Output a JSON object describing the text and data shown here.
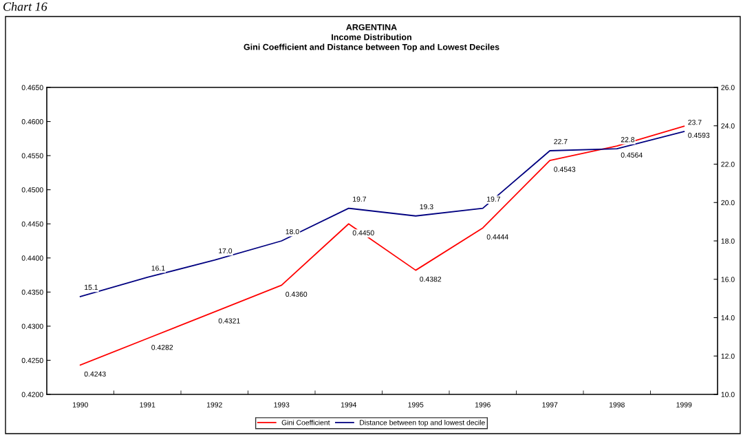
{
  "chart_data": {
    "type": "line",
    "title": "ARGENTINA\nIncome Distribution\nGini Coefficient and Distance between Top and Lowest Deciles",
    "annotations": [
      "Chart 16"
    ],
    "categories": [
      "1990",
      "1991",
      "1992",
      "1993",
      "1994",
      "1995",
      "1996",
      "1997",
      "1998",
      "1999"
    ],
    "series": [
      {
        "name": "Gini Coefficient",
        "color": "#ff0000",
        "values": [
          0.4243,
          0.4282,
          0.4321,
          0.436,
          0.445,
          0.4382,
          0.4444,
          0.4543,
          0.4564,
          0.4593
        ],
        "value_labels": [
          "0.4243",
          "0.4282",
          "0.4321",
          "0.4360",
          "0.4450",
          "0.4382",
          "0.4444",
          "0.4543",
          "0.4564",
          "0.4593"
        ]
      },
      {
        "name": "Distance between top and lowest decile",
        "color": "#000080",
        "axis": "y2",
        "values": [
          15.1,
          16.1,
          17.0,
          18.0,
          19.7,
          19.3,
          19.7,
          22.7,
          22.8,
          23.7
        ],
        "value_labels": [
          "15.1",
          "16.1",
          "17.0",
          "18.0",
          "19.7",
          "19.3",
          "19.7",
          "22.7",
          "22.8",
          "23.7"
        ]
      }
    ],
    "ylim": [
      0.42,
      0.465
    ],
    "yticks": [
      {
        "value": 0.42,
        "label": "0.4200"
      },
      {
        "value": 0.425,
        "label": "0.4250"
      },
      {
        "value": 0.43,
        "label": "0.4300"
      },
      {
        "value": 0.435,
        "label": "0.4350"
      },
      {
        "value": 0.44,
        "label": "0.4400"
      },
      {
        "value": 0.445,
        "label": "0.4450"
      },
      {
        "value": 0.45,
        "label": "0.4500"
      },
      {
        "value": 0.455,
        "label": "0.4550"
      },
      {
        "value": 0.46,
        "label": "0.4600"
      },
      {
        "value": 0.465,
        "label": "0.4650"
      }
    ],
    "y2lim": [
      10,
      26
    ],
    "y2ticks": [
      {
        "value": 10,
        "label": "10.0"
      },
      {
        "value": 12,
        "label": "12.0"
      },
      {
        "value": 14,
        "label": "14.0"
      },
      {
        "value": 16,
        "label": "16.0"
      },
      {
        "value": 18,
        "label": "18.0"
      },
      {
        "value": 20,
        "label": "20.0"
      },
      {
        "value": 22,
        "label": "22.0"
      },
      {
        "value": 24,
        "label": "24.0"
      },
      {
        "value": 26,
        "label": "26.0"
      }
    ],
    "grid": false,
    "legend": "bottom",
    "marker": "none",
    "line_style": "solid"
  }
}
